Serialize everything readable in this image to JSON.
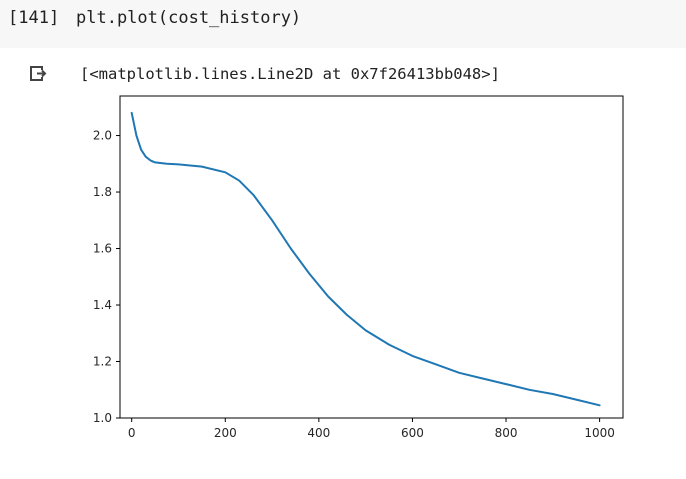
{
  "input_cell": {
    "prompt": "[141]",
    "code": "plt.plot(cost_history)"
  },
  "output": {
    "icon": "output-arrow-icon",
    "text": "[<matplotlib.lines.Line2D at 0x7f26413bb048>]"
  },
  "chart_data": {
    "type": "line",
    "title": "",
    "xlabel": "",
    "ylabel": "",
    "xlim": [
      -25,
      1050
    ],
    "ylim": [
      1.0,
      2.14
    ],
    "x_ticks": [
      0,
      200,
      400,
      600,
      800,
      1000
    ],
    "y_ticks": [
      1.0,
      1.2,
      1.4,
      1.6,
      1.8,
      2.0
    ],
    "x_tick_labels": [
      "0",
      "200",
      "400",
      "600",
      "800",
      "1000"
    ],
    "y_tick_labels": [
      "1.0",
      "1.2",
      "1.4",
      "1.6",
      "1.8",
      "2.0"
    ],
    "grid": false,
    "line_color": "#1f77b4",
    "series": [
      {
        "x": [
          0,
          10,
          20,
          30,
          40,
          50,
          75,
          100,
          150,
          200,
          230,
          260,
          300,
          340,
          380,
          420,
          460,
          500,
          550,
          600,
          650,
          700,
          750,
          800,
          850,
          900,
          950,
          1000
        ],
        "values": [
          2.08,
          2.0,
          1.95,
          1.925,
          1.912,
          1.905,
          1.9,
          1.898,
          1.89,
          1.87,
          1.84,
          1.79,
          1.7,
          1.6,
          1.51,
          1.43,
          1.365,
          1.31,
          1.26,
          1.22,
          1.19,
          1.16,
          1.14,
          1.12,
          1.1,
          1.085,
          1.065,
          1.045
        ]
      }
    ]
  }
}
